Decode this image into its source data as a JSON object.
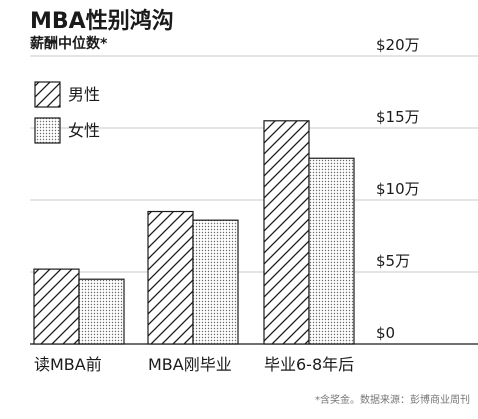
{
  "chart_data": {
    "type": "bar",
    "title": "MBA性别鸿沟",
    "subtitle": "薪酬中位数*",
    "categories": [
      "读MBA前",
      "MBA刚毕业",
      "毕业6-8年后"
    ],
    "series": [
      {
        "name": "男性",
        "pattern": "diagonal-hatch",
        "values": [
          52000,
          92000,
          155000
        ]
      },
      {
        "name": "女性",
        "pattern": "dots",
        "values": [
          45000,
          86000,
          129000
        ]
      }
    ],
    "ylim": [
      0,
      200000
    ],
    "yticks": [
      0,
      50000,
      100000,
      150000,
      200000
    ],
    "ytick_labels": [
      "$0",
      "$5万",
      "$10万",
      "$15万",
      "$20万"
    ],
    "grid": true,
    "legend_position": "top-left",
    "footnote": "*含奖金。数据来源：彭博商业周刊",
    "colors": {
      "ink": "#1a1a1a",
      "grid": "#c8c8c8",
      "footnote": "#777777"
    }
  }
}
